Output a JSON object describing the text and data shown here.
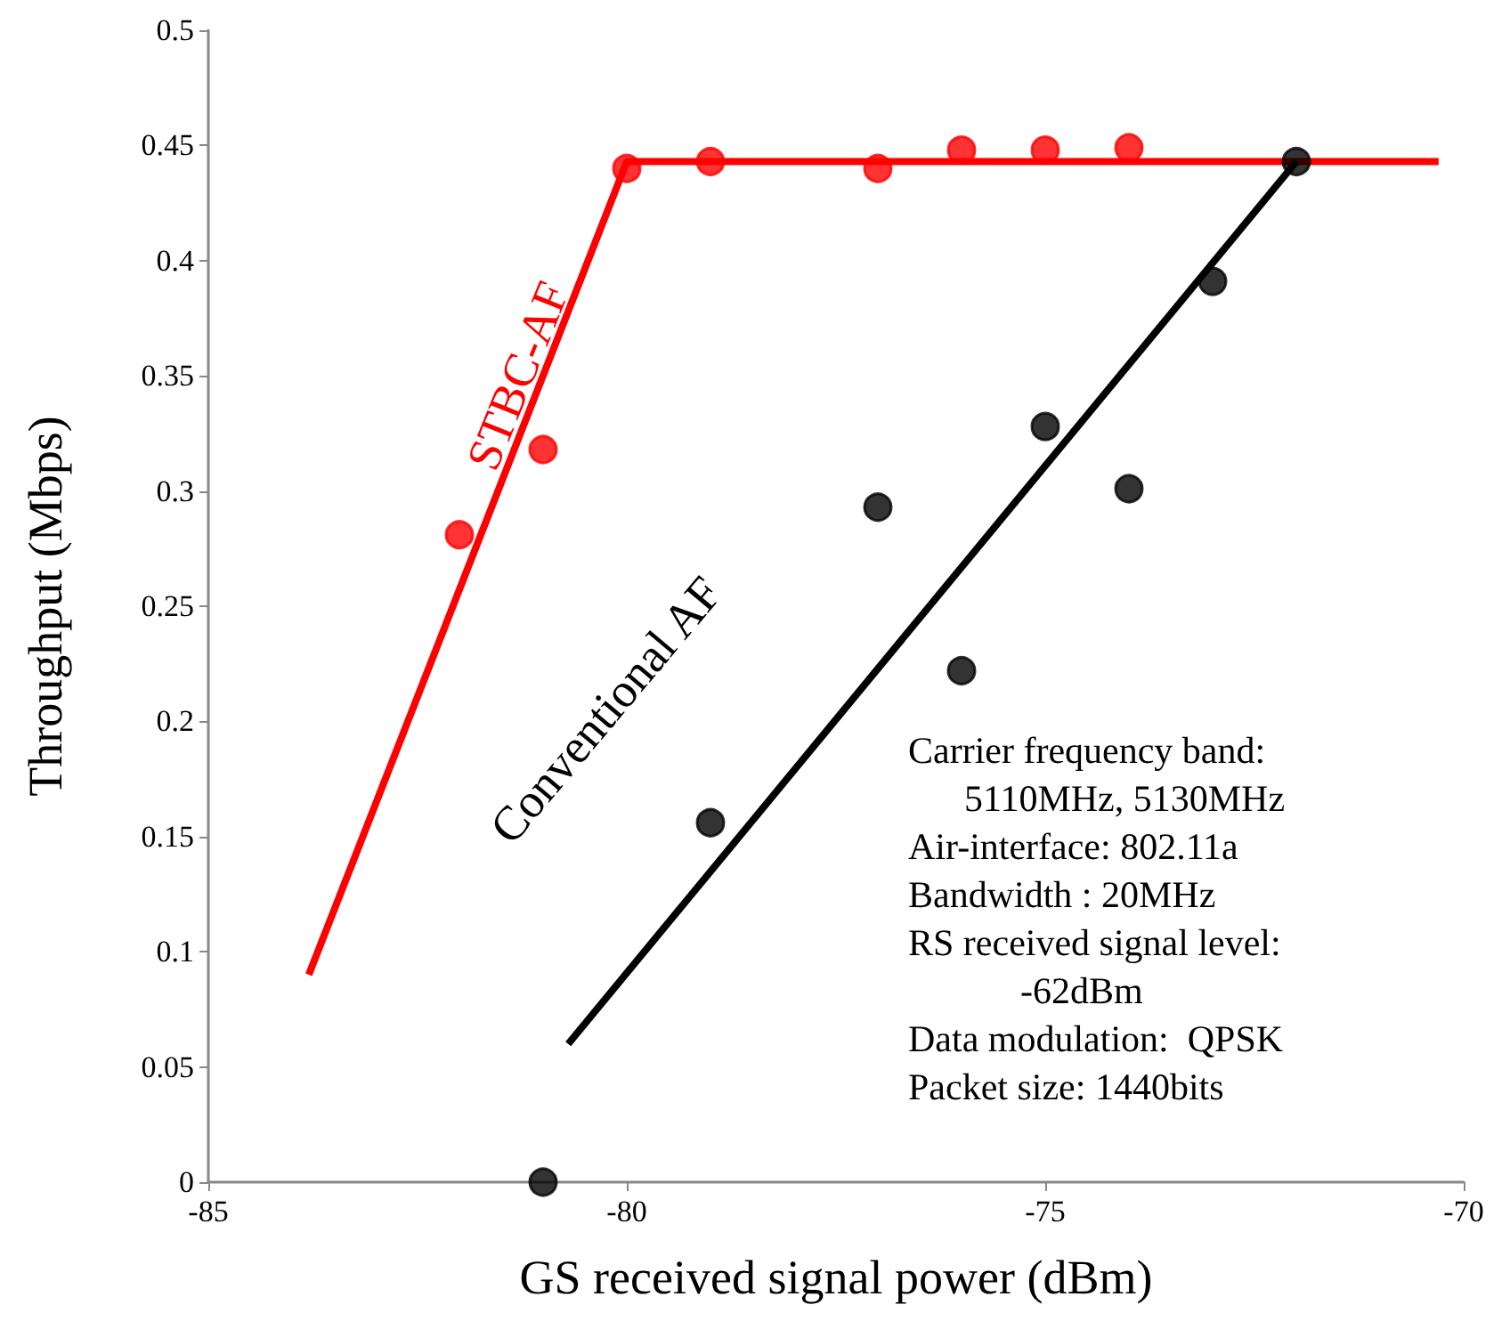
{
  "chart_data": {
    "type": "scatter",
    "xlabel": "GS received signal power (dBm)",
    "ylabel": "Throughput (Mbps)",
    "xlim": [
      -85,
      -70
    ],
    "xticks": [
      -85,
      -80,
      -75,
      -70
    ],
    "ylim": [
      0,
      0.5
    ],
    "yticks": [
      0,
      0.05,
      0.1,
      0.15,
      0.2,
      0.25,
      0.3,
      0.35,
      0.4,
      0.45,
      0.5
    ],
    "grid": false,
    "legend": false,
    "marker": "circle",
    "series": [
      {
        "name": "STBC-AF",
        "color": "#ff0000",
        "x": [
          -82,
          -81,
          -80,
          -79,
          -77,
          -76,
          -75,
          -74
        ],
        "values": [
          0.281,
          0.318,
          0.44,
          0.443,
          0.44,
          0.448,
          0.448,
          0.449
        ]
      },
      {
        "type": "line",
        "color": "#ff0000",
        "x": [
          -83.8,
          -80,
          -70.3
        ],
        "values": [
          0.09,
          0.443,
          0.443
        ],
        "marker": "none"
      },
      {
        "name": "Conventional AF",
        "color": "#000000",
        "x": [
          -81,
          -79,
          -77,
          -76,
          -75,
          -74,
          -73,
          -72
        ],
        "values": [
          0,
          0.156,
          0.293,
          0.222,
          0.328,
          0.301,
          0.391,
          0.443
        ]
      },
      {
        "type": "line",
        "color": "#000000",
        "x": [
          -80.7,
          -72
        ],
        "values": [
          0.06,
          0.443
        ],
        "marker": "none"
      }
    ],
    "annotations": [
      "Carrier frequency band:\n      5110MHz, 5130MHz\nAir-interface: 802.11a\nBandwidth : 20MHz\nRS received signal level:\n            -62dBm\nData modulation:  QPSK\nPacket size: 1440bits"
    ]
  }
}
